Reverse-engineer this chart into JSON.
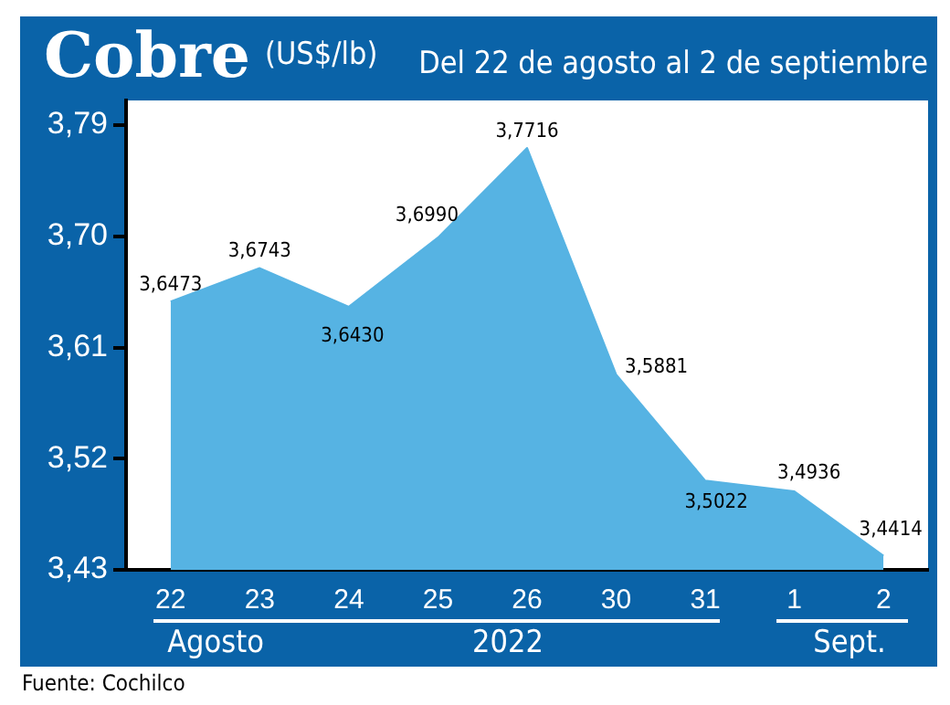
{
  "chart_data": {
    "type": "area",
    "title": "Cobre",
    "ylabel": "(US$/lb)",
    "subtitle": "Del 22 de agosto al 2 de septiembre",
    "categories": [
      "22",
      "23",
      "24",
      "25",
      "26",
      "30",
      "31",
      "1",
      "2"
    ],
    "series": [
      {
        "color": "#56b3e3",
        "values": [
          3.6473,
          3.6743,
          3.643,
          3.699,
          3.7716,
          3.5881,
          3.5022,
          3.4936,
          3.4414
        ],
        "value_labels": [
          "3,6473",
          "3,6743",
          "3,6430",
          "3,6990",
          "3,7716",
          "3,5881",
          "3,5022",
          "3,4936",
          "3,4414"
        ]
      }
    ],
    "ylim": [
      3.43,
      3.81
    ],
    "yticks": [
      {
        "value": 3.43,
        "label": "3,43"
      },
      {
        "value": 3.52,
        "label": "3,52"
      },
      {
        "value": 3.61,
        "label": "3,61"
      },
      {
        "value": 3.7,
        "label": "3,70"
      },
      {
        "value": 3.79,
        "label": "3,79"
      }
    ],
    "grid": false,
    "legend": false,
    "annotations": [
      "Agosto",
      "2022",
      "Sept.",
      "Fuente: Cochilco"
    ]
  }
}
